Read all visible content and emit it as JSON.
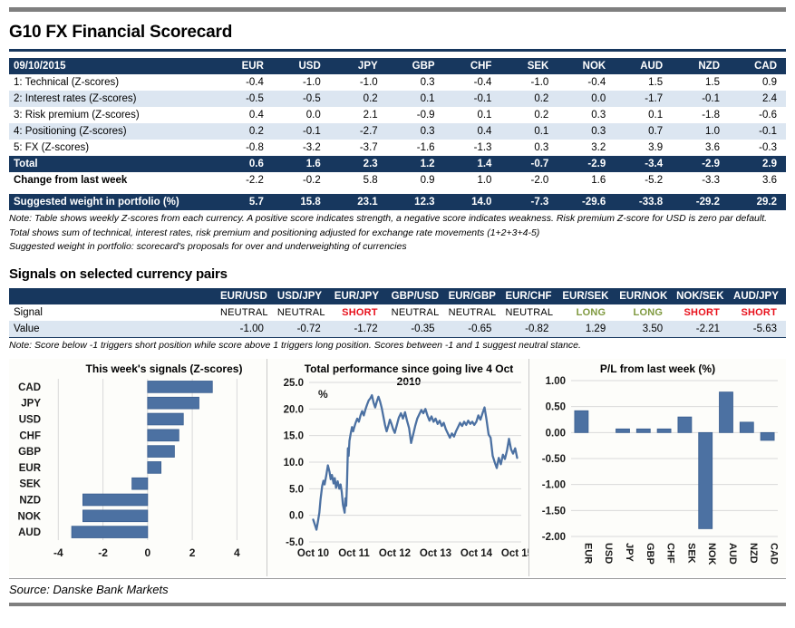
{
  "title": "G10 FX Financial Scorecard",
  "source": "Source: Danske Bank Markets",
  "colors": {
    "navy": "#17375e",
    "stripe": "#dce6f1",
    "bar_blue": "#4c71a2",
    "bar_border": "#3a5e90",
    "long_green": "#7f993f",
    "short_red": "#e8111c",
    "grid_gray": "#d9d9d9",
    "rule_gray": "#7f7f7f",
    "axis_text": "#1a1a1a"
  },
  "scorecard": {
    "date_label": "09/10/2015",
    "currencies": [
      "EUR",
      "USD",
      "JPY",
      "GBP",
      "CHF",
      "SEK",
      "NOK",
      "AUD",
      "NZD",
      "CAD"
    ],
    "rows": [
      {
        "label": "1: Technical (Z-scores)",
        "values": [
          -0.4,
          -1.0,
          -1.0,
          0.3,
          -0.4,
          -1.0,
          -0.4,
          1.5,
          1.5,
          0.9
        ]
      },
      {
        "label": "2: Interest rates (Z-scores)",
        "values": [
          -0.5,
          -0.5,
          0.2,
          0.1,
          -0.1,
          0.2,
          0.0,
          -1.7,
          -0.1,
          2.4
        ]
      },
      {
        "label": "3: Risk premium (Z-scores)",
        "values": [
          0.4,
          0.0,
          2.1,
          -0.9,
          0.1,
          0.2,
          0.3,
          0.1,
          -1.8,
          -0.6
        ]
      },
      {
        "label": "4: Positioning (Z-scores)",
        "values": [
          0.2,
          -0.1,
          -2.7,
          0.3,
          0.4,
          0.1,
          0.3,
          0.7,
          1.0,
          -0.1
        ]
      },
      {
        "label": "5: FX (Z-scores)",
        "values": [
          -0.8,
          -3.2,
          -3.7,
          -1.6,
          -1.3,
          0.3,
          3.2,
          3.9,
          3.6,
          -0.3
        ]
      }
    ],
    "total": {
      "label": "Total",
      "values": [
        0.6,
        1.6,
        2.3,
        1.2,
        1.4,
        -0.7,
        -2.9,
        -3.4,
        -2.9,
        2.9
      ]
    },
    "change": {
      "label": "Change from last week",
      "values": [
        -2.2,
        -0.2,
        5.8,
        0.9,
        1.0,
        -2.0,
        1.6,
        -5.2,
        -3.3,
        3.6
      ]
    },
    "weight": {
      "label": "Suggested weight in portfolio (%)",
      "values": [
        5.7,
        15.8,
        23.1,
        12.3,
        14.0,
        -7.3,
        -29.6,
        -33.8,
        -29.2,
        29.2
      ]
    },
    "notes": [
      "Note: Table shows weekly Z-scores from each currency. A positive score indicates strength, a negative score indicates weakness. Risk premium Z-score for USD is zero par default.",
      "Total shows sum of technical, interest rates, risk premium and positioning adjusted for exchange rate movements (1+2+3+4-5)",
      "Suggested weight in portfolio: scorecard's proposals for over and underweighting of currencies"
    ]
  },
  "signals": {
    "heading": "Signals on selected currency pairs",
    "pairs": [
      "EUR/USD",
      "USD/JPY",
      "EUR/JPY",
      "GBP/USD",
      "EUR/GBP",
      "EUR/CHF",
      "EUR/SEK",
      "EUR/NOK",
      "NOK/SEK",
      "AUD/JPY"
    ],
    "signal_row_label": "Signal",
    "value_row_label": "Value",
    "signal_values": [
      "NEUTRAL",
      "NEUTRAL",
      "SHORT",
      "NEUTRAL",
      "NEUTRAL",
      "NEUTRAL",
      "LONG",
      "LONG",
      "SHORT",
      "SHORT"
    ],
    "values": [
      -1.0,
      -0.72,
      -1.72,
      -0.35,
      -0.65,
      -0.82,
      1.29,
      3.5,
      -2.21,
      -5.63
    ],
    "note": "Note: Score below -1 triggers short position while score above 1 triggers long position. Scores between -1 and 1 suggest neutral stance."
  },
  "chart_data": [
    {
      "type": "bar",
      "orientation": "horizontal",
      "title": "This week's signals (Z-scores)",
      "categories": [
        "CAD",
        "JPY",
        "USD",
        "CHF",
        "GBP",
        "EUR",
        "SEK",
        "NZD",
        "NOK",
        "AUD"
      ],
      "values": [
        2.9,
        2.3,
        1.6,
        1.4,
        1.2,
        0.6,
        -0.7,
        -2.9,
        -2.9,
        -3.4
      ],
      "xlim": [
        -4.5,
        5.0
      ],
      "xticks": [
        -4,
        -2,
        0,
        2,
        4
      ],
      "grid": "vertical"
    },
    {
      "type": "line",
      "title": "Total performance since going live 4 Oct 2010",
      "ylabel": "%",
      "ylim": [
        -5,
        25
      ],
      "yticks": [
        25.0,
        20.0,
        15.0,
        10.0,
        5.0,
        0.0,
        -5.0
      ],
      "xtick_labels": [
        "Oct 10",
        "Oct 11",
        "Oct 12",
        "Oct 13",
        "Oct 14",
        "Oct 15"
      ],
      "grid": "horizontal",
      "x": [
        0.0,
        0.05,
        0.08,
        0.12,
        0.15,
        0.18,
        0.22,
        0.25,
        0.28,
        0.32,
        0.36,
        0.4,
        0.43,
        0.46,
        0.5,
        0.53,
        0.56,
        0.6,
        0.64,
        0.67,
        0.7,
        0.73,
        0.77,
        0.79,
        0.81,
        0.83,
        0.85,
        0.87,
        0.89,
        0.92,
        0.95,
        0.98,
        1.0,
        1.04,
        1.08,
        1.12,
        1.16,
        1.2,
        1.24,
        1.28,
        1.32,
        1.36,
        1.4,
        1.44,
        1.48,
        1.52,
        1.56,
        1.6,
        1.64,
        1.68,
        1.72,
        1.76,
        1.8,
        1.84,
        1.88,
        1.92,
        1.96,
        2.0,
        2.05,
        2.1,
        2.15,
        2.2,
        2.25,
        2.3,
        2.35,
        2.4,
        2.45,
        2.5,
        2.55,
        2.6,
        2.65,
        2.7,
        2.75,
        2.8,
        2.85,
        2.9,
        2.95,
        3.0,
        3.05,
        3.1,
        3.15,
        3.2,
        3.25,
        3.3,
        3.35,
        3.4,
        3.45,
        3.5,
        3.55,
        3.6,
        3.65,
        3.7,
        3.75,
        3.8,
        3.85,
        3.9,
        3.95,
        4.0,
        4.05,
        4.1,
        4.15,
        4.2,
        4.25,
        4.3,
        4.35,
        4.4,
        4.45,
        4.5,
        4.55,
        4.6,
        4.65,
        4.7,
        4.75,
        4.8,
        4.85,
        4.9,
        4.95,
        5.0
      ],
      "y": [
        -0.8,
        -2.0,
        -2.7,
        -1.0,
        0.5,
        3.0,
        5.5,
        6.5,
        5.8,
        7.5,
        9.4,
        8.2,
        6.8,
        7.6,
        6.0,
        7.0,
        5.2,
        6.4,
        5.0,
        5.8,
        4.4,
        2.0,
        0.5,
        3.2,
        1.8,
        6.0,
        12.6,
        11.2,
        14.0,
        15.4,
        16.6,
        15.8,
        16.4,
        17.4,
        18.2,
        17.6,
        18.8,
        19.6,
        18.8,
        19.9,
        20.8,
        21.6,
        22.0,
        22.6,
        21.2,
        20.3,
        21.4,
        22.3,
        21.4,
        20.2,
        18.6,
        17.0,
        15.8,
        16.8,
        18.0,
        17.2,
        16.2,
        15.5,
        17.0,
        18.4,
        19.2,
        18.2,
        19.4,
        17.8,
        16.4,
        13.6,
        15.2,
        16.8,
        18.2,
        19.0,
        19.8,
        19.2,
        20.0,
        18.8,
        17.8,
        18.6,
        17.6,
        18.2,
        17.2,
        17.8,
        16.8,
        17.4,
        16.2,
        15.4,
        14.6,
        15.4,
        14.8,
        15.8,
        16.6,
        17.4,
        16.8,
        17.6,
        17.0,
        17.8,
        17.2,
        17.6,
        17.0,
        17.6,
        18.8,
        18.0,
        19.2,
        20.3,
        18.0,
        15.2,
        14.6,
        11.2,
        10.0,
        8.9,
        10.8,
        9.6,
        11.4,
        10.6,
        12.2,
        14.4,
        12.4,
        11.6,
        12.6,
        10.8
      ]
    },
    {
      "type": "bar",
      "orientation": "vertical",
      "title": "P/L from last week (%)",
      "categories": [
        "EUR",
        "USD",
        "JPY",
        "GBP",
        "CHF",
        "SEK",
        "NOK",
        "AUD",
        "NZD",
        "CAD"
      ],
      "values": [
        0.42,
        0.0,
        0.07,
        0.07,
        0.07,
        0.3,
        -1.85,
        0.78,
        0.2,
        -0.15
      ],
      "ylim": [
        -2.0,
        1.0
      ],
      "yticks": [
        1.0,
        0.5,
        0.0,
        -0.5,
        -1.0,
        -1.5,
        -2.0
      ],
      "grid": "horizontal"
    }
  ]
}
